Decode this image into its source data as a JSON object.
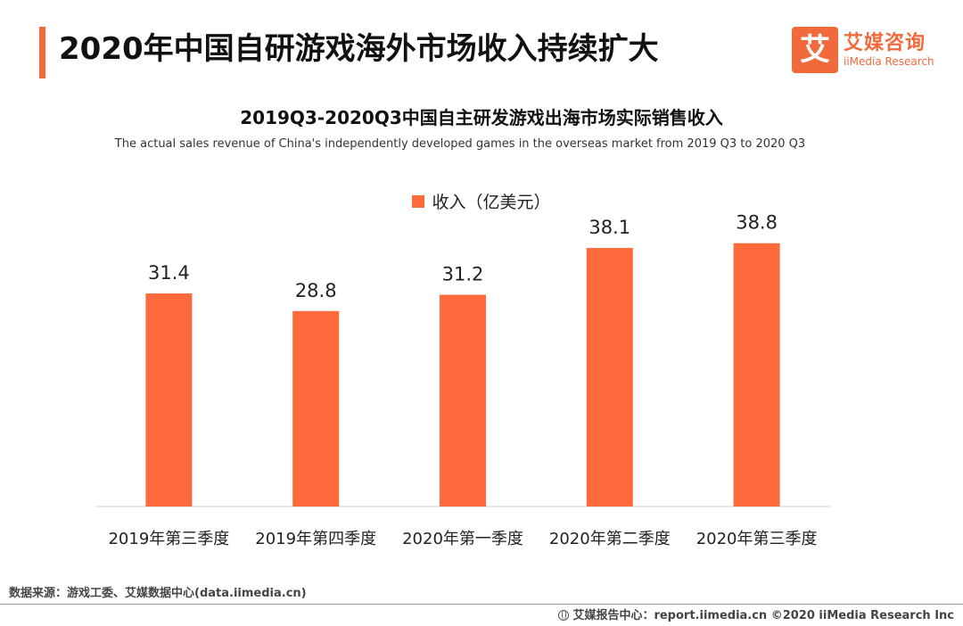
{
  "header": {
    "title": "2020年中国自研游戏海外市场收入持续扩大",
    "logo_cn": "艾媒咨询",
    "logo_en": "iiMedia Research",
    "logo_mark": "艾"
  },
  "colors": {
    "accent": "#f26a3b",
    "bar": "#ff6a3d"
  },
  "chart_data": {
    "type": "bar",
    "title": "2019Q3-2020Q3中国自主研发游戏出海市场实际销售收入",
    "subtitle": "The actual sales revenue of China's independently developed games in the overseas market from 2019 Q3 to 2020 Q3",
    "categories": [
      "2019年第三季度",
      "2019年第四季度",
      "2020年第一季度",
      "2020年第二季度",
      "2020年第三季度"
    ],
    "series": [
      {
        "name": "收入（亿美元）",
        "values": [
          31.4,
          28.8,
          31.2,
          38.1,
          38.8
        ]
      }
    ],
    "value_labels": [
      "31.4",
      "28.8",
      "31.2",
      "38.1",
      "38.8"
    ],
    "ylim": [
      0,
      41
    ],
    "grid": false,
    "legend_position": "top-center"
  },
  "footer": {
    "source": "数据来源：游戏工委、艾媒数据中心(data.iimedia.cn)",
    "report": "艾媒报告中心：report.iimedia.cn   ©2020  iiMedia Research  Inc"
  }
}
